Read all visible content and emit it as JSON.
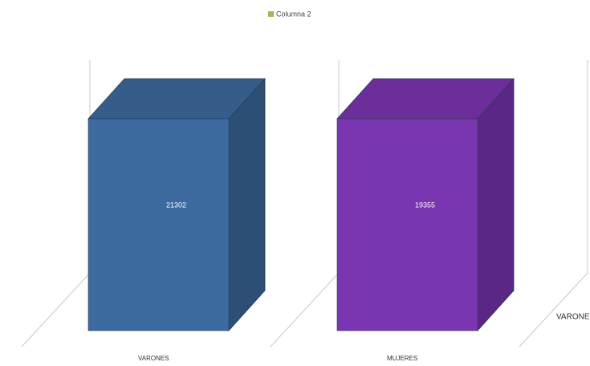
{
  "legend": "Columna 2",
  "legend_color": "#9bbb59",
  "chart_data": [
    {
      "type": "bar",
      "categories": [
        "VARONES"
      ],
      "values": [
        21302
      ],
      "color": "#3d6a9e"
    },
    {
      "type": "bar",
      "categories": [
        "MUJERES"
      ],
      "values": [
        19355
      ],
      "color": "#7a35b0"
    },
    {
      "type": "bar",
      "categories": [
        "VARONES"
      ],
      "values": [
        null
      ],
      "color": "#3d6a9e"
    }
  ]
}
